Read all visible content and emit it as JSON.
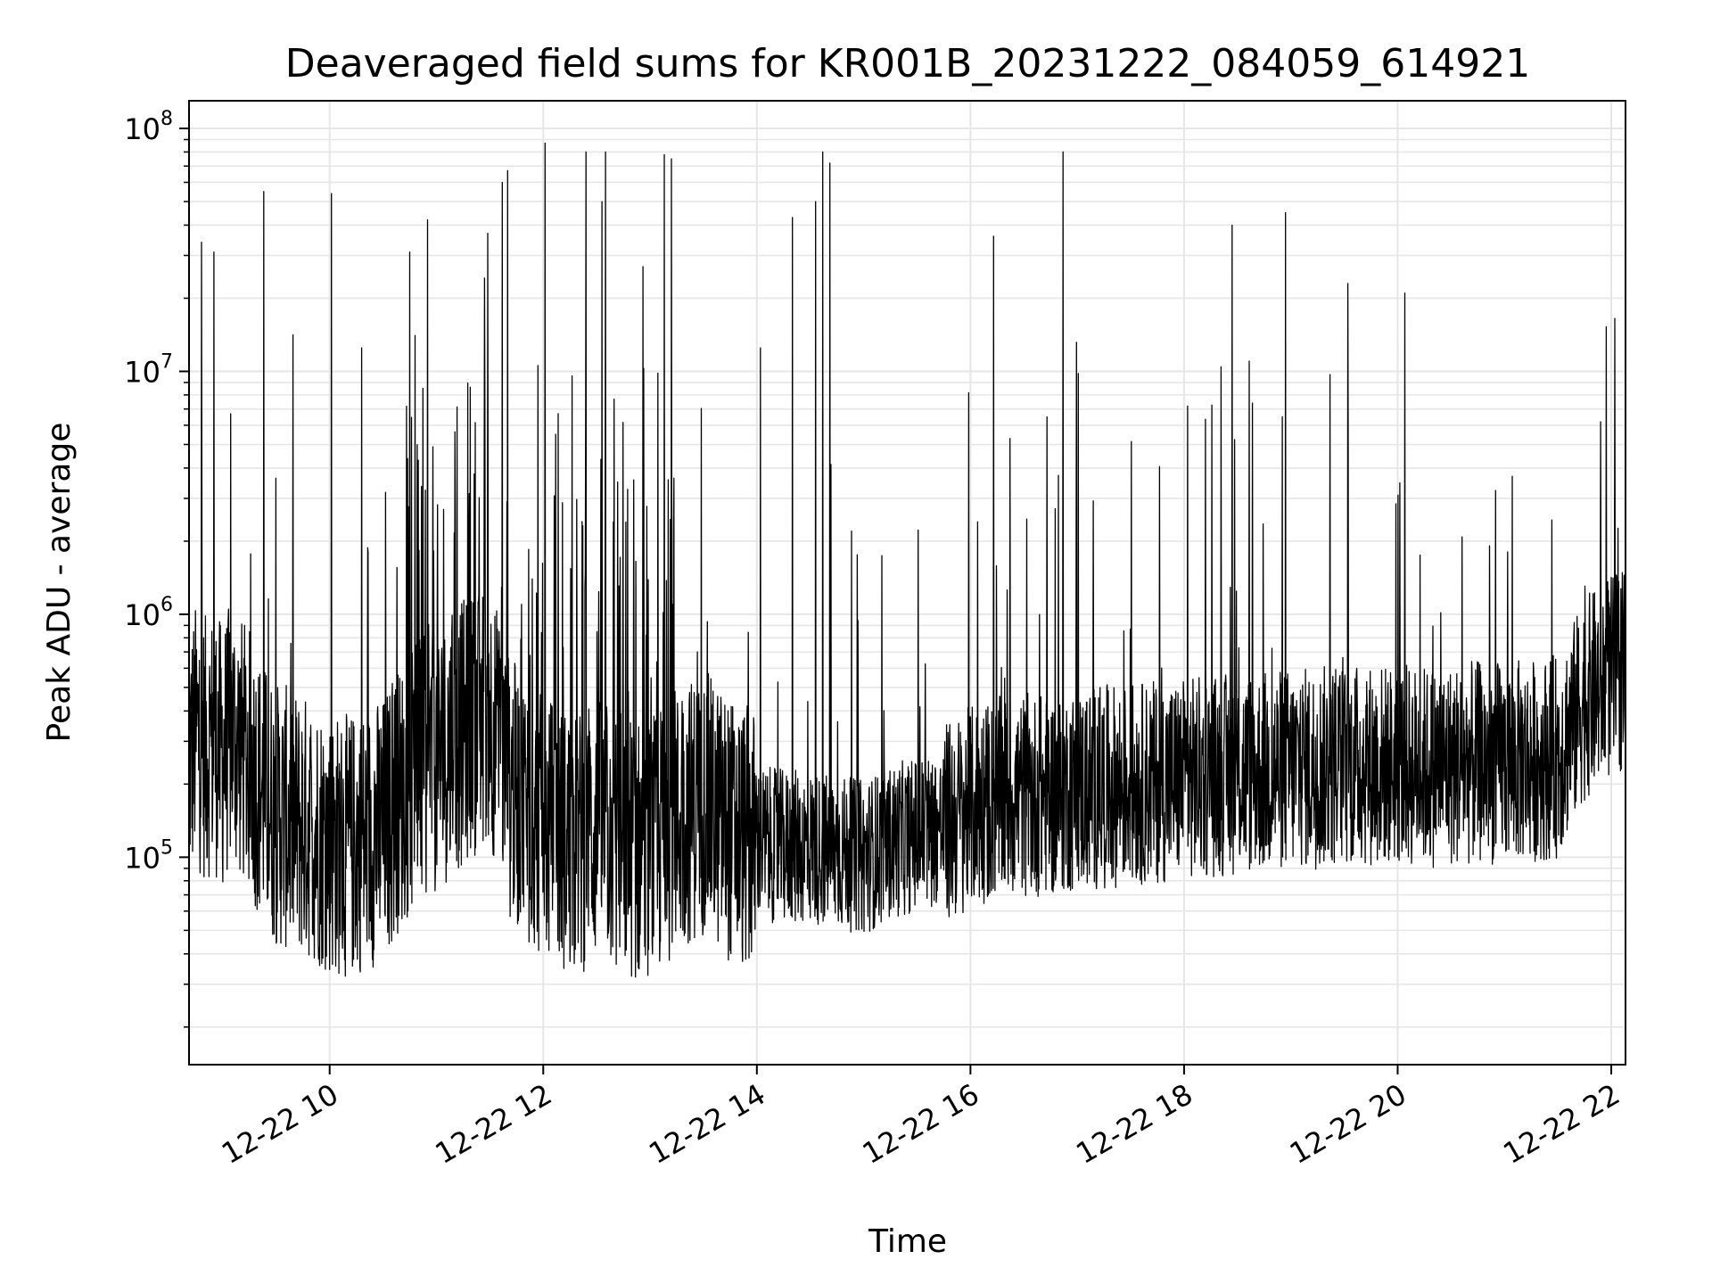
{
  "chart_data": {
    "type": "line",
    "title": "Deaveraged field sums for KR001B_20231222_084059_614921",
    "xlabel": "Time",
    "ylabel": "Peak ADU - average",
    "yscale": "log",
    "xlim": [
      "2023-12-22 08:41",
      "2023-12-22 22:08"
    ],
    "ylim": [
      14000,
      130000000
    ],
    "grid": true,
    "line_color": "#000000",
    "xticks": [
      {
        "time": "2023-12-22 10:00",
        "label": "12-22 10"
      },
      {
        "time": "2023-12-22 12:00",
        "label": "12-22 12"
      },
      {
        "time": "2023-12-22 14:00",
        "label": "12-22 14"
      },
      {
        "time": "2023-12-22 16:00",
        "label": "12-22 16"
      },
      {
        "time": "2023-12-22 18:00",
        "label": "12-22 18"
      },
      {
        "time": "2023-12-22 20:00",
        "label": "12-22 20"
      },
      {
        "time": "2023-12-22 22:00",
        "label": "12-22 22"
      }
    ],
    "yticks": [
      {
        "value": 100000,
        "base": "10",
        "exp": "5"
      },
      {
        "value": 1000000,
        "base": "10",
        "exp": "6"
      },
      {
        "value": 10000000,
        "base": "10",
        "exp": "7"
      },
      {
        "value": 100000000,
        "base": "10",
        "exp": "8"
      }
    ],
    "series": [
      {
        "x": [
          "08:41",
          "08:45",
          "08:50",
          "08:55",
          "09:00",
          "09:05",
          "09:10",
          "09:15",
          "09:20",
          "09:25",
          "09:30",
          "09:40",
          "09:50",
          "10:00",
          "10:10",
          "10:20",
          "10:30",
          "10:40",
          "10:50",
          "11:00",
          "11:10",
          "11:20",
          "11:30",
          "11:40",
          "11:50",
          "12:00",
          "12:10",
          "12:20",
          "12:30",
          "12:40",
          "12:50",
          "13:00",
          "13:10",
          "13:20",
          "13:30",
          "13:45",
          "14:00",
          "14:15",
          "14:30",
          "14:45",
          "15:00",
          "15:15",
          "15:30",
          "15:45",
          "16:00",
          "16:15",
          "16:30",
          "16:45",
          "17:00",
          "17:15",
          "17:30",
          "17:45",
          "18:00",
          "18:15",
          "18:30",
          "18:45",
          "19:00",
          "19:15",
          "19:30",
          "19:45",
          "20:00",
          "20:15",
          "20:30",
          "20:45",
          "21:00",
          "21:15",
          "21:30",
          "21:45",
          "22:00",
          "22:08"
        ],
        "y": [
          250000,
          320000,
          280000,
          300000,
          260000,
          330000,
          280000,
          250000,
          200000,
          170000,
          150000,
          140000,
          130000,
          115000,
          110000,
          120000,
          130000,
          180000,
          220000,
          250000,
          300000,
          350000,
          400000,
          200000,
          160000,
          130000,
          120000,
          115000,
          130000,
          120000,
          110000,
          105000,
          130000,
          150000,
          170000,
          130000,
          115000,
          110000,
          110000,
          105000,
          100000,
          115000,
          125000,
          135000,
          160000,
          175000,
          180000,
          180000,
          190000,
          195000,
          200000,
          205000,
          210000,
          215000,
          220000,
          225000,
          230000,
          235000,
          240000,
          240000,
          240000,
          235000,
          240000,
          245000,
          245000,
          250000,
          260000,
          450000,
          550000,
          600000
        ]
      }
    ],
    "spikes": [
      {
        "x": "08:48",
        "y": 34000000
      },
      {
        "x": "08:55",
        "y": 31000000
      },
      {
        "x": "09:23",
        "y": 55000000
      },
      {
        "x": "10:01",
        "y": 54000000
      },
      {
        "x": "10:18",
        "y": 12500000
      },
      {
        "x": "10:45",
        "y": 31000000
      },
      {
        "x": "10:55",
        "y": 42000000
      },
      {
        "x": "11:37",
        "y": 60000000
      },
      {
        "x": "11:40",
        "y": 67000000
      },
      {
        "x": "12:01",
        "y": 87000000
      },
      {
        "x": "12:24",
        "y": 80000000
      },
      {
        "x": "12:33",
        "y": 50000000
      },
      {
        "x": "12:35",
        "y": 80000000
      },
      {
        "x": "12:56",
        "y": 27000000
      },
      {
        "x": "13:08",
        "y": 78000000
      },
      {
        "x": "13:12",
        "y": 75000000
      },
      {
        "x": "14:02",
        "y": 12500000
      },
      {
        "x": "14:20",
        "y": 43000000
      },
      {
        "x": "14:33",
        "y": 50000000
      },
      {
        "x": "14:37",
        "y": 80000000
      },
      {
        "x": "14:41",
        "y": 72000000
      },
      {
        "x": "16:04",
        "y": 2400000
      },
      {
        "x": "16:13",
        "y": 36000000
      },
      {
        "x": "16:43",
        "y": 6500000
      },
      {
        "x": "16:52",
        "y": 80000000
      },
      {
        "x": "18:02",
        "y": 7200000
      },
      {
        "x": "18:27",
        "y": 40000000
      },
      {
        "x": "18:57",
        "y": 45000000
      },
      {
        "x": "19:22",
        "y": 9700000
      },
      {
        "x": "19:32",
        "y": 23000000
      },
      {
        "x": "21:54",
        "y": 6200000
      },
      {
        "x": "22:02",
        "y": 16500000
      }
    ]
  }
}
